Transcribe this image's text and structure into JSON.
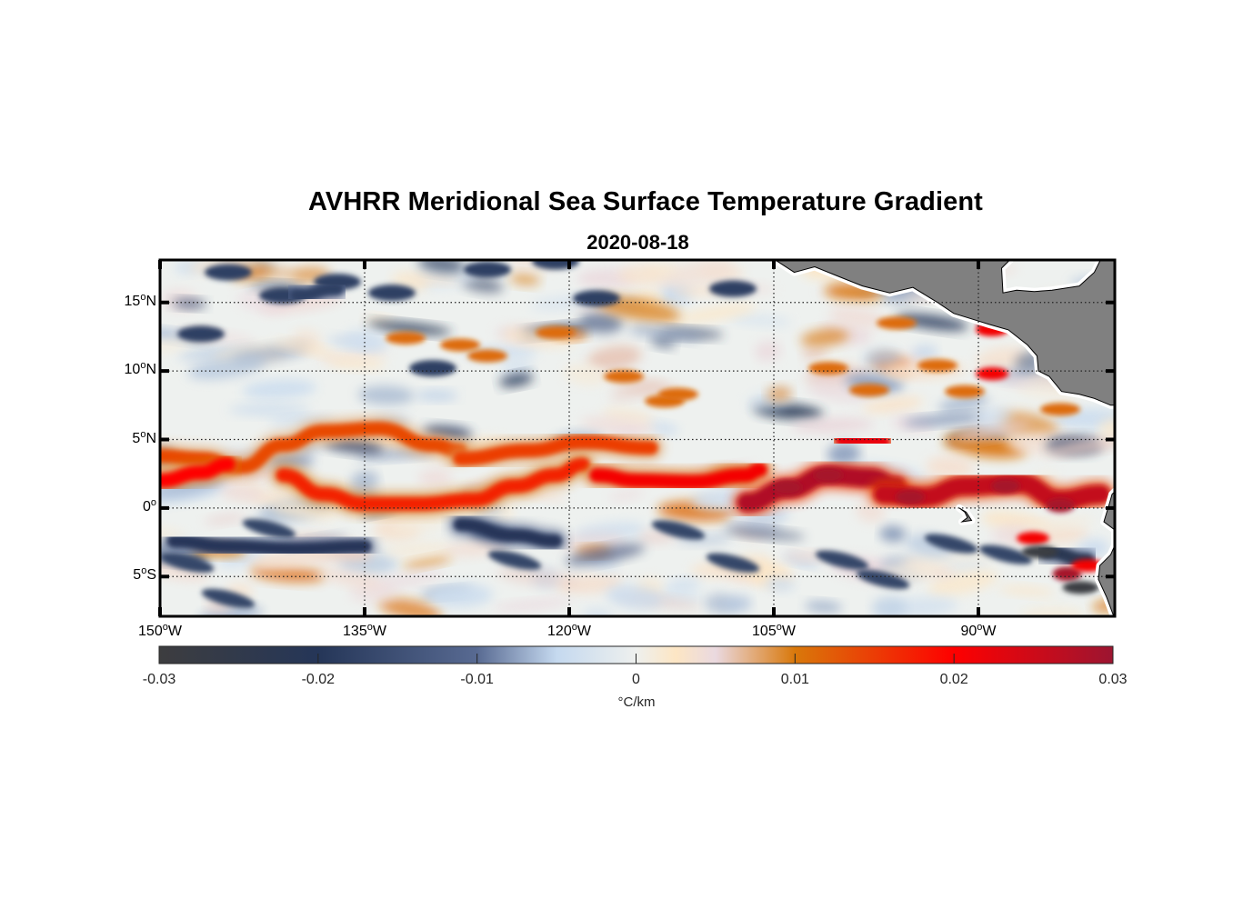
{
  "chart_data": {
    "type": "heatmap",
    "title": "AVHRR Meridional Sea Surface Temperature Gradient",
    "subtitle": "2020-08-18",
    "xlabel": "",
    "ylabel": "",
    "xlim": [
      -150,
      -80
    ],
    "ylim": [
      -7.9,
      18.1
    ],
    "grid": true,
    "x_ticks": [
      {
        "value": -150,
        "label": "150",
        "hemi": "W"
      },
      {
        "value": -135,
        "label": "135",
        "hemi": "W"
      },
      {
        "value": -120,
        "label": "120",
        "hemi": "W"
      },
      {
        "value": -105,
        "label": "105",
        "hemi": "W"
      },
      {
        "value": -90,
        "label": "90",
        "hemi": "W"
      }
    ],
    "y_ticks": [
      {
        "value": 15,
        "label": "15",
        "hemi": "N"
      },
      {
        "value": 10,
        "label": "10",
        "hemi": "N"
      },
      {
        "value": 5,
        "label": "5",
        "hemi": "N"
      },
      {
        "value": 0,
        "label": "0",
        "hemi": ""
      },
      {
        "value": -5,
        "label": "5",
        "hemi": "S"
      }
    ],
    "degree_symbol": "o",
    "colorbar": {
      "label": "°C/km",
      "limits": [
        -0.03,
        0.03
      ],
      "ticks": [
        -0.03,
        -0.02,
        -0.01,
        0,
        0.01,
        0.02,
        0.03
      ],
      "tick_labels": [
        "-0.03",
        "-0.02",
        "-0.01",
        "0",
        "0.01",
        "0.02",
        "0.03"
      ],
      "placement": "bottom",
      "colors": [
        {
          "value": -0.03,
          "color": "#3d3d3f"
        },
        {
          "value": -0.02,
          "color": "#253658"
        },
        {
          "value": -0.01,
          "color": "#586a92"
        },
        {
          "value": -0.005,
          "color": "#c5d9ef"
        },
        {
          "value": 0,
          "color": "#eef0ee"
        },
        {
          "value": 0.0025,
          "color": "#fde6c4"
        },
        {
          "value": 0.005,
          "color": "#ead9e0"
        },
        {
          "value": 0.01,
          "color": "#d9780a"
        },
        {
          "value": 0.02,
          "color": "#fe0000"
        },
        {
          "value": 0.03,
          "color": "#9c1531"
        }
      ]
    },
    "land_color": "#808080",
    "features": [
      {
        "name": "equatorial-front-north-branch",
        "sign": "positive",
        "magnitude": 0.014,
        "path": [
          [
            -150,
            3.8
          ],
          [
            -147,
            3.6
          ],
          [
            -144,
            3.0
          ],
          [
            -141,
            4.6
          ],
          [
            -138,
            5.6
          ],
          [
            -134,
            5.8
          ],
          [
            -130,
            4.6
          ],
          [
            -128,
            4.2
          ]
        ]
      },
      {
        "name": "equatorial-front-west-red",
        "sign": "positive",
        "magnitude": 0.02,
        "path": [
          [
            -150,
            2.0
          ],
          [
            -147,
            2.6
          ],
          [
            -145,
            3.2
          ]
        ]
      },
      {
        "name": "equatorial-front-south-arc",
        "sign": "positive",
        "magnitude": 0.017,
        "path": [
          [
            -141,
            2.4
          ],
          [
            -138,
            1.0
          ],
          [
            -135,
            0.3
          ],
          [
            -131,
            0.3
          ],
          [
            -127,
            0.6
          ],
          [
            -124,
            1.6
          ],
          [
            -121,
            2.4
          ],
          [
            -119,
            3.2
          ]
        ]
      },
      {
        "name": "equatorial-front-mid",
        "sign": "positive",
        "magnitude": 0.015,
        "path": [
          [
            -128,
            3.6
          ],
          [
            -123,
            4.2
          ],
          [
            -119,
            4.8
          ],
          [
            -114,
            4.4
          ]
        ]
      },
      {
        "name": "equatorial-front-central-red",
        "sign": "positive",
        "magnitude": 0.021,
        "path": [
          [
            -118,
            2.4
          ],
          [
            -115,
            2.0
          ],
          [
            -111,
            1.9
          ],
          [
            -107,
            2.4
          ],
          [
            -106,
            2.8
          ]
        ]
      },
      {
        "name": "equatorial-front-east-maroon",
        "sign": "positive",
        "magnitude": 0.028,
        "path": [
          [
            -107,
            0.4
          ],
          [
            -104,
            1.4
          ],
          [
            -101,
            2.4
          ],
          [
            -98,
            2.2
          ],
          [
            -96,
            1.6
          ]
        ]
      },
      {
        "name": "equatorial-front-east-mass",
        "sign": "positive",
        "magnitude": 0.026,
        "path": [
          [
            -97,
            1.0
          ],
          [
            -94,
            0.8
          ],
          [
            -91,
            1.6
          ],
          [
            -87,
            1.8
          ],
          [
            -84,
            0.6
          ],
          [
            -81,
            1.0
          ]
        ]
      },
      {
        "name": "tropical-north-east",
        "sign": "positive",
        "magnitude": 0.022,
        "path": [
          [
            -100,
            5.0
          ],
          [
            -97,
            4.8
          ]
        ]
      },
      {
        "name": "southern-negative-west",
        "sign": "negative",
        "magnitude": -0.02,
        "path": [
          [
            -149,
            -2.4
          ],
          [
            -145,
            -2.8
          ],
          [
            -140,
            -3.0
          ],
          [
            -135,
            -2.8
          ]
        ]
      },
      {
        "name": "southern-negative-central",
        "sign": "negative",
        "magnitude": -0.02,
        "path": [
          [
            -128,
            -1.2
          ],
          [
            -124,
            -2.0
          ],
          [
            -121,
            -2.4
          ]
        ]
      },
      {
        "name": "southern-negative-east",
        "sign": "negative",
        "magnitude": -0.022,
        "path": [
          [
            -85,
            -3.2
          ],
          [
            -82,
            -3.8
          ]
        ]
      },
      {
        "name": "northern-negative-west",
        "sign": "negative",
        "magnitude": -0.018,
        "path": [
          [
            -140,
            15.5
          ],
          [
            -137,
            16.0
          ]
        ]
      }
    ]
  }
}
